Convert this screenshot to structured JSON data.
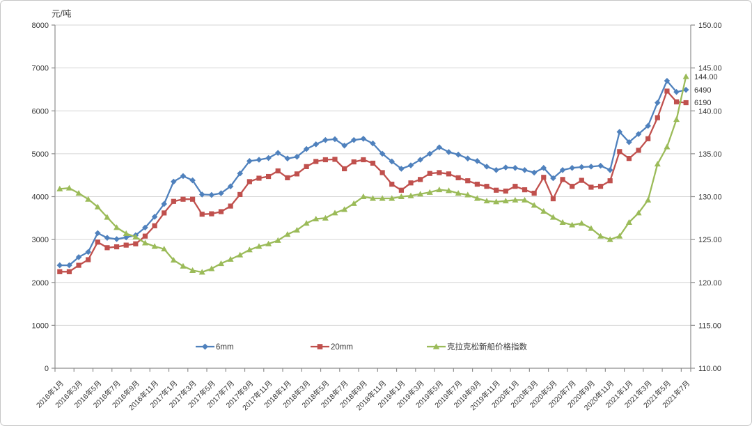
{
  "chart": {
    "unit_label": "元/吨",
    "end_labels": {
      "index": "144.00",
      "s6mm": "6490",
      "s20mm": "6190"
    },
    "colors": {
      "s6mm": "#4F81BD",
      "s20mm": "#C0504D",
      "index": "#9BBB59",
      "grid": "#D6D6D6",
      "axis": "#8E8E8E",
      "text": "#363636"
    }
  },
  "chart_data": {
    "type": "line",
    "title": "",
    "xlabel": "",
    "ylabel_left": "元/吨",
    "legend_position": "bottom-inside",
    "grid": true,
    "left_axis": {
      "min": 0,
      "max": 8000,
      "step": 1000
    },
    "right_axis": {
      "min": 110,
      "max": 150,
      "step": 5
    },
    "x_tick_interval": 2,
    "x": [
      "2016年1月",
      "2016年2月",
      "2016年3月",
      "2016年4月",
      "2016年5月",
      "2016年6月",
      "2016年7月",
      "2016年8月",
      "2016年9月",
      "2016年10月",
      "2016年11月",
      "2016年12月",
      "2017年1月",
      "2017年2月",
      "2017年3月",
      "2017年4月",
      "2017年5月",
      "2017年6月",
      "2017年7月",
      "2017年8月",
      "2017年9月",
      "2017年10月",
      "2017年11月",
      "2017年12月",
      "2018年1月",
      "2018年2月",
      "2018年3月",
      "2018年4月",
      "2018年5月",
      "2018年6月",
      "2018年7月",
      "2018年8月",
      "2018年9月",
      "2018年10月",
      "2018年11月",
      "2018年12月",
      "2019年1月",
      "2019年2月",
      "2019年3月",
      "2019年4月",
      "2019年5月",
      "2019年6月",
      "2019年7月",
      "2019年8月",
      "2019年9月",
      "2019年10月",
      "2019年11月",
      "2019年12月",
      "2020年1月",
      "2020年2月",
      "2020年3月",
      "2020年4月",
      "2020年5月",
      "2020年6月",
      "2020年7月",
      "2020年8月",
      "2020年9月",
      "2020年10月",
      "2020年11月",
      "2020年12月",
      "2021年1月",
      "2021年2月",
      "2021年3月",
      "2021年4月",
      "2021年5月",
      "2021年6月",
      "2021年7月"
    ],
    "series": [
      {
        "name": "6mm",
        "axis": "left",
        "marker": "diamond",
        "color": "#4F81BD",
        "values": [
          2400,
          2400,
          2590,
          2710,
          3150,
          3040,
          3010,
          3050,
          3100,
          3280,
          3530,
          3830,
          4350,
          4480,
          4380,
          4050,
          4040,
          4080,
          4240,
          4540,
          4830,
          4860,
          4900,
          5020,
          4890,
          4930,
          5110,
          5220,
          5320,
          5340,
          5190,
          5320,
          5350,
          5240,
          5000,
          4820,
          4650,
          4730,
          4860,
          5000,
          5150,
          5040,
          4980,
          4890,
          4830,
          4700,
          4620,
          4680,
          4670,
          4620,
          4560,
          4670,
          4430,
          4620,
          4670,
          4690,
          4700,
          4720,
          4620,
          5510,
          5270,
          5460,
          5650,
          6190,
          6700,
          6440,
          6490
        ]
      },
      {
        "name": "20mm",
        "axis": "left",
        "marker": "square",
        "color": "#C0504D",
        "values": [
          2250,
          2250,
          2400,
          2530,
          2940,
          2810,
          2830,
          2870,
          2900,
          3080,
          3320,
          3620,
          3890,
          3940,
          3940,
          3590,
          3600,
          3650,
          3780,
          4050,
          4350,
          4430,
          4470,
          4600,
          4440,
          4530,
          4700,
          4820,
          4860,
          4870,
          4650,
          4810,
          4860,
          4780,
          4560,
          4290,
          4150,
          4320,
          4400,
          4540,
          4560,
          4530,
          4440,
          4370,
          4290,
          4240,
          4150,
          4130,
          4240,
          4160,
          4080,
          4450,
          3950,
          4400,
          4240,
          4380,
          4220,
          4240,
          4370,
          5050,
          4890,
          5080,
          5350,
          5840,
          6460,
          6210,
          6190
        ]
      },
      {
        "name": "克拉克松新船价格指数",
        "axis": "right",
        "marker": "triangle",
        "color": "#9BBB59",
        "values": [
          130.9,
          131.0,
          130.4,
          129.7,
          128.8,
          127.6,
          126.4,
          125.7,
          125.3,
          124.6,
          124.2,
          123.9,
          122.6,
          121.9,
          121.4,
          121.2,
          121.6,
          122.2,
          122.7,
          123.2,
          123.8,
          124.2,
          124.5,
          124.9,
          125.6,
          126.1,
          126.9,
          127.4,
          127.5,
          128.1,
          128.5,
          129.2,
          130.0,
          129.8,
          129.8,
          129.8,
          130.0,
          130.1,
          130.3,
          130.5,
          130.8,
          130.7,
          130.4,
          130.2,
          129.8,
          129.5,
          129.4,
          129.5,
          129.6,
          129.6,
          129.0,
          128.3,
          127.6,
          127.0,
          126.7,
          126.9,
          126.3,
          125.4,
          125.0,
          125.4,
          127.0,
          128.1,
          129.6,
          133.8,
          135.8,
          139.0,
          144.0
        ]
      }
    ]
  }
}
